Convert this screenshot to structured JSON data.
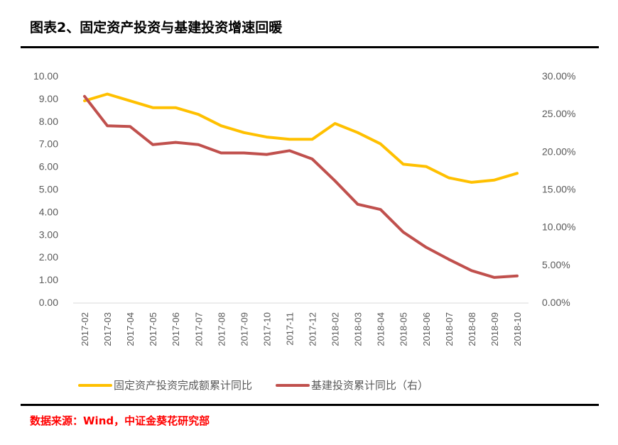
{
  "title": "图表2、固定资产投资与基建投资增速回暖",
  "source": "数据来源：Wind，中证金葵花研究部",
  "colors": {
    "fixed_asset": "#FFC000",
    "infrastructure": "#C0504D",
    "axis": "#D9D9D9",
    "tick_text": "#595959"
  },
  "chart_data": {
    "type": "line",
    "title": "图表2、固定资产投资与基建投资增速回暖",
    "xlabel": "",
    "ylabel": "",
    "categories": [
      "2017-02",
      "2017-03",
      "2017-04",
      "2017-05",
      "2017-06",
      "2017-07",
      "2017-08",
      "2017-09",
      "2017-10",
      "2017-11",
      "2017-12",
      "2018-02",
      "2018-03",
      "2018-04",
      "2018-05",
      "2018-06",
      "2018-07",
      "2018-08",
      "2018-09",
      "2018-10"
    ],
    "y_left": {
      "range": [
        0,
        10
      ],
      "ticks": [
        "0.00",
        "1.00",
        "2.00",
        "3.00",
        "4.00",
        "5.00",
        "6.00",
        "7.00",
        "8.00",
        "9.00",
        "10.00"
      ]
    },
    "y_right": {
      "range": [
        0,
        30
      ],
      "ticks": [
        "0.00%",
        "5.00%",
        "10.00%",
        "15.00%",
        "20.00%",
        "25.00%",
        "30.00%"
      ]
    },
    "grid": false,
    "legend_position": "bottom",
    "series": [
      {
        "name": "固定资产投资完成额累计同比",
        "axis": "left",
        "color": "#FFC000",
        "values": [
          8.9,
          9.2,
          8.9,
          8.6,
          8.6,
          8.3,
          7.8,
          7.5,
          7.3,
          7.2,
          7.2,
          7.9,
          7.5,
          7.0,
          6.1,
          6.0,
          5.5,
          5.3,
          5.4,
          5.7
        ]
      },
      {
        "name": "基建投资累计同比（右）",
        "axis": "right",
        "color": "#C0504D",
        "values": [
          27.3,
          23.4,
          23.3,
          20.9,
          21.2,
          20.9,
          19.8,
          19.8,
          19.6,
          20.1,
          19.0,
          16.1,
          13.0,
          12.3,
          9.3,
          7.3,
          5.7,
          4.2,
          3.3,
          3.5
        ]
      }
    ]
  }
}
